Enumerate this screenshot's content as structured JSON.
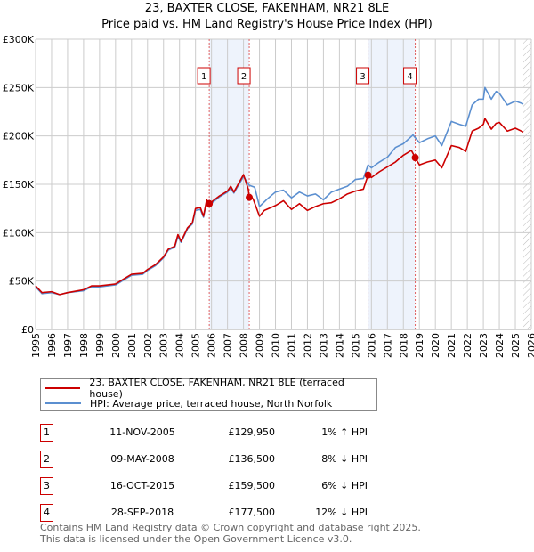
{
  "chart_data": {
    "type": "line",
    "title": "23, BAXTER CLOSE, FAKENHAM, NR21 8LE",
    "subtitle": "Price paid vs. HM Land Registry's House Price Index (HPI)",
    "xlim": [
      1995,
      2026
    ],
    "ylim": [
      0,
      300000
    ],
    "y_ticks": [
      {
        "v": 0,
        "label": "£0"
      },
      {
        "v": 50000,
        "label": "£50K"
      },
      {
        "v": 100000,
        "label": "£100K"
      },
      {
        "v": 150000,
        "label": "£150K"
      },
      {
        "v": 200000,
        "label": "£200K"
      },
      {
        "v": 250000,
        "label": "£250K"
      },
      {
        "v": 300000,
        "label": "£300K"
      }
    ],
    "x_ticks": [
      "1995",
      "1996",
      "1997",
      "1998",
      "1999",
      "2000",
      "2001",
      "2002",
      "2003",
      "2004",
      "2005",
      "2006",
      "2007",
      "2008",
      "2009",
      "2010",
      "2011",
      "2012",
      "2013",
      "2014",
      "2015",
      "2016",
      "2017",
      "2018",
      "2019",
      "2020",
      "2021",
      "2022",
      "2023",
      "2024",
      "2025",
      "2026"
    ],
    "grid": true,
    "series": [
      {
        "name": "23, BAXTER CLOSE, FAKENHAM, NR21 8LE (terraced house)",
        "color": "#cc0000",
        "points": [
          [
            1995,
            45
          ],
          [
            1995.4,
            38
          ],
          [
            1996,
            39
          ],
          [
            1996.5,
            36
          ],
          [
            1997,
            38
          ],
          [
            1998,
            41
          ],
          [
            1998.5,
            45
          ],
          [
            1999,
            45
          ],
          [
            2000,
            47
          ],
          [
            2000.5,
            52
          ],
          [
            2001,
            57
          ],
          [
            2001.7,
            58
          ],
          [
            2002,
            62
          ],
          [
            2002.5,
            67
          ],
          [
            2003,
            75
          ],
          [
            2003.3,
            83
          ],
          [
            2003.7,
            86
          ],
          [
            2003.9,
            98
          ],
          [
            2004.1,
            91
          ],
          [
            2004.5,
            105
          ],
          [
            2004.8,
            110
          ],
          [
            2005,
            125
          ],
          [
            2005.3,
            126
          ],
          [
            2005.5,
            117
          ],
          [
            2005.7,
            134
          ],
          [
            2005.86,
            129.95
          ],
          [
            2006.5,
            138
          ],
          [
            2007,
            143
          ],
          [
            2007.2,
            148
          ],
          [
            2007.4,
            142
          ],
          [
            2008,
            160
          ],
          [
            2008.3,
            145
          ],
          [
            2008.36,
            136.5
          ],
          [
            2008.6,
            135
          ],
          [
            2009,
            117
          ],
          [
            2009.3,
            123
          ],
          [
            2010,
            128
          ],
          [
            2010.5,
            133
          ],
          [
            2011,
            124
          ],
          [
            2011.5,
            130
          ],
          [
            2012,
            123
          ],
          [
            2012.5,
            127
          ],
          [
            2013,
            130
          ],
          [
            2013.5,
            131
          ],
          [
            2014,
            135
          ],
          [
            2014.5,
            140
          ],
          [
            2015,
            143
          ],
          [
            2015.5,
            145
          ],
          [
            2015.79,
            159.5
          ],
          [
            2016,
            157
          ],
          [
            2016.5,
            163
          ],
          [
            2017,
            168
          ],
          [
            2017.5,
            173
          ],
          [
            2018,
            180
          ],
          [
            2018.5,
            185
          ],
          [
            2018.74,
            177.5
          ],
          [
            2019,
            170
          ],
          [
            2019.5,
            173
          ],
          [
            2020,
            175
          ],
          [
            2020.4,
            167
          ],
          [
            2021,
            190
          ],
          [
            2021.5,
            188
          ],
          [
            2021.9,
            184
          ],
          [
            2022.3,
            205
          ],
          [
            2022.7,
            208
          ],
          [
            2023,
            212
          ],
          [
            2023.1,
            218
          ],
          [
            2023.5,
            207
          ],
          [
            2023.8,
            213
          ],
          [
            2024,
            214
          ],
          [
            2024.5,
            205
          ],
          [
            2025,
            208
          ],
          [
            2025.5,
            204
          ]
        ]
      },
      {
        "name": "HPI: Average price, terraced house, North Norfolk",
        "color": "#5b8fd0",
        "points": [
          [
            1995,
            44
          ],
          [
            1995.4,
            37
          ],
          [
            1996,
            38
          ],
          [
            1996.5,
            36
          ],
          [
            1997,
            38
          ],
          [
            1998,
            40
          ],
          [
            1998.5,
            44
          ],
          [
            1999,
            44
          ],
          [
            2000,
            46
          ],
          [
            2000.5,
            51
          ],
          [
            2001,
            56
          ],
          [
            2001.7,
            57
          ],
          [
            2002,
            61
          ],
          [
            2002.5,
            66
          ],
          [
            2003,
            74
          ],
          [
            2003.3,
            82
          ],
          [
            2003.7,
            85
          ],
          [
            2003.9,
            96
          ],
          [
            2004.1,
            90
          ],
          [
            2004.5,
            104
          ],
          [
            2004.8,
            109
          ],
          [
            2005,
            123
          ],
          [
            2005.3,
            124
          ],
          [
            2005.5,
            116
          ],
          [
            2005.7,
            132
          ],
          [
            2005.86,
            128.5
          ],
          [
            2006.5,
            137
          ],
          [
            2007,
            142
          ],
          [
            2007.2,
            146
          ],
          [
            2007.4,
            141
          ],
          [
            2008,
            158
          ],
          [
            2008.36,
            149
          ],
          [
            2008.7,
            147
          ],
          [
            2009,
            127
          ],
          [
            2009.5,
            135
          ],
          [
            2010,
            142
          ],
          [
            2010.5,
            144
          ],
          [
            2011,
            136
          ],
          [
            2011.5,
            142
          ],
          [
            2012,
            138
          ],
          [
            2012.5,
            140
          ],
          [
            2013,
            134
          ],
          [
            2013.5,
            142
          ],
          [
            2014,
            145
          ],
          [
            2014.5,
            148
          ],
          [
            2015,
            155
          ],
          [
            2015.5,
            156
          ],
          [
            2015.79,
            170
          ],
          [
            2016,
            167
          ],
          [
            2016.5,
            173
          ],
          [
            2017,
            178
          ],
          [
            2017.5,
            188
          ],
          [
            2018,
            192
          ],
          [
            2018.6,
            201
          ],
          [
            2019,
            193
          ],
          [
            2019.5,
            197
          ],
          [
            2020,
            200
          ],
          [
            2020.4,
            190
          ],
          [
            2021,
            215
          ],
          [
            2021.5,
            212
          ],
          [
            2021.9,
            210
          ],
          [
            2022.3,
            232
          ],
          [
            2022.7,
            238
          ],
          [
            2023,
            238
          ],
          [
            2023.1,
            250
          ],
          [
            2023.5,
            238
          ],
          [
            2023.8,
            246
          ],
          [
            2024,
            244
          ],
          [
            2024.5,
            232
          ],
          [
            2025,
            236
          ],
          [
            2025.5,
            233
          ]
        ]
      }
    ],
    "sales": [
      {
        "n": "1",
        "x": 2005.86,
        "y": 129.95
      },
      {
        "n": "2",
        "x": 2008.36,
        "y": 136.5
      },
      {
        "n": "3",
        "x": 2015.79,
        "y": 159.5
      },
      {
        "n": "4",
        "x": 2018.74,
        "y": 177.5
      }
    ],
    "shaded_periods": [
      [
        2005.86,
        2008.36
      ],
      [
        2015.79,
        2018.74
      ]
    ],
    "forecast_from": 2025.5,
    "value_units": "thousand GBP"
  },
  "legend": {
    "items": [
      {
        "label": "23, BAXTER CLOSE, FAKENHAM, NR21 8LE (terraced house)",
        "color": "#cc0000"
      },
      {
        "label": "HPI: Average price, terraced house, North Norfolk",
        "color": "#5b8fd0"
      }
    ]
  },
  "transactions": [
    {
      "n": "1",
      "date": "11-NOV-2005",
      "price": "£129,950",
      "hpi": "1% ↑ HPI"
    },
    {
      "n": "2",
      "date": "09-MAY-2008",
      "price": "£136,500",
      "hpi": "8% ↓ HPI"
    },
    {
      "n": "3",
      "date": "16-OCT-2015",
      "price": "£159,500",
      "hpi": "6% ↓ HPI"
    },
    {
      "n": "4",
      "date": "28-SEP-2018",
      "price": "£177,500",
      "hpi": "12% ↓ HPI"
    }
  ],
  "footer": {
    "line1": "Contains HM Land Registry data © Crown copyright and database right 2025.",
    "line2": "This data is licensed under the Open Government Licence v3.0."
  }
}
